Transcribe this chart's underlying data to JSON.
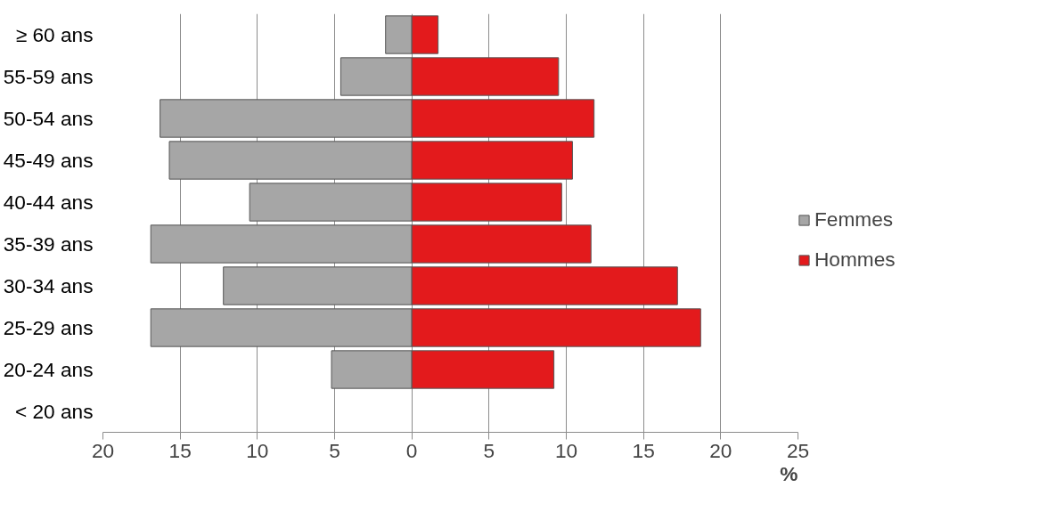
{
  "chart_data": {
    "type": "bar",
    "orientation": "horizontal",
    "categories": [
      "≥ 60 ans",
      "55-59 ans",
      "50-54 ans",
      "45-49 ans",
      "40-44 ans",
      "35-39 ans",
      "30-34 ans",
      "25-29 ans",
      "20-24 ans",
      "< 20 ans"
    ],
    "series": [
      {
        "name": "Femmes",
        "color": "#a6a6a6",
        "values": [
          -1.7,
          -4.6,
          -16.3,
          -15.7,
          -10.5,
          -16.9,
          -12.2,
          -16.9,
          -5.2,
          null
        ]
      },
      {
        "name": "Hommes",
        "color": "#e31a1c",
        "values": [
          1.7,
          9.5,
          11.8,
          10.4,
          9.7,
          11.6,
          17.2,
          18.7,
          9.2,
          null
        ]
      }
    ],
    "xlabel": "%",
    "xlim": [
      -20,
      25
    ],
    "xticks": [
      {
        "value": -20,
        "label": "20"
      },
      {
        "value": -15,
        "label": "15"
      },
      {
        "value": -10,
        "label": "10"
      },
      {
        "value": -5,
        "label": "5"
      },
      0,
      5,
      10,
      15,
      20,
      25
    ],
    "grid": "x",
    "legend": "right",
    "stacked": true
  }
}
